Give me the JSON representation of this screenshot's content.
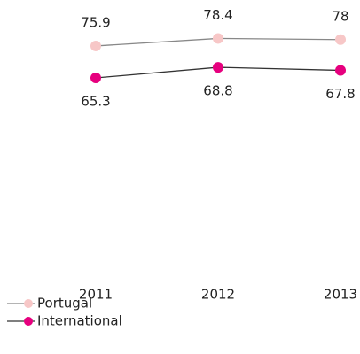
{
  "chart_data": {
    "type": "line",
    "categories": [
      "2011",
      "2012",
      "2013"
    ],
    "series": [
      {
        "name": "Portugal",
        "color": "#f7c7c7",
        "line_color": "#888888",
        "values": [
          75.9,
          78.4,
          78.0
        ]
      },
      {
        "name": "International",
        "color": "#e6007e",
        "line_color": "#333333",
        "values": [
          65.3,
          68.8,
          67.8
        ]
      }
    ],
    "ylim": [
      0,
      90
    ],
    "grid": false,
    "legend": "bottom-left"
  }
}
